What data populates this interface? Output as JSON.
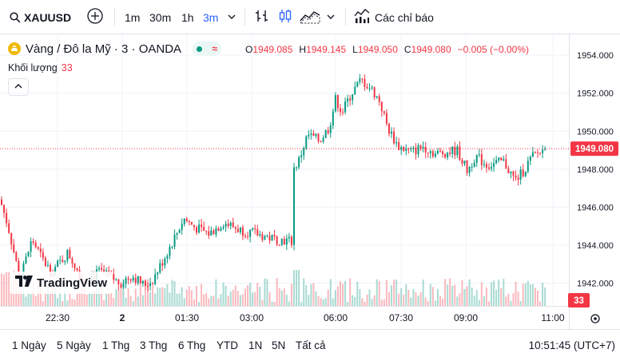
{
  "toolbar": {
    "symbol": "XAUUSD",
    "intervals": [
      "1m",
      "30m",
      "1h",
      "3m"
    ],
    "active_interval": "3m",
    "indicators_label": "Các chỉ báo"
  },
  "legend": {
    "title": "Vàng / Đô la Mỹ · 3 · OANDA",
    "ohlc": [
      {
        "key": "O",
        "value": "1949.085"
      },
      {
        "key": "H",
        "value": "1949.145"
      },
      {
        "key": "L",
        "value": "1949.050"
      },
      {
        "key": "C",
        "value": "1949.080"
      }
    ],
    "change": "−0.005 (−0.00%)",
    "volume_label": "Khối lượng",
    "volume_value": "33"
  },
  "bottom": {
    "ranges": [
      "1 Ngày",
      "5 Ngày",
      "1 Thg",
      "3 Thg",
      "6 Thg",
      "YTD",
      "1N",
      "5N",
      "Tất cả"
    ],
    "clock": "10:51:45 (UTC+7)"
  },
  "logo_text": "TradingView",
  "colors": {
    "up": "#089981",
    "down": "#f23645",
    "accent": "#2962ff"
  },
  "chart_data": {
    "type": "candlestick",
    "symbol": "XAUUSD",
    "last_price": "1949.080",
    "last_volume": "33",
    "price_axis": {
      "ticks": [
        "1954.000",
        "1952.000",
        "1950.000",
        "1948.000",
        "1946.000",
        "1944.000",
        "1942.000"
      ],
      "range": [
        1940.8,
        1955.1
      ]
    },
    "time_axis": {
      "ticks": [
        "22:30",
        "2",
        "01:30",
        "03:00",
        "06:00",
        "07:30",
        "09:00",
        "11:00"
      ]
    },
    "close_path": [
      [
        0,
        1946.4
      ],
      [
        10,
        1945.0
      ],
      [
        25,
        1942.2
      ],
      [
        40,
        1944.3
      ],
      [
        55,
        1943.1
      ],
      [
        65,
        1942.6
      ],
      [
        85,
        1943.6
      ],
      [
        105,
        1942.1
      ],
      [
        125,
        1942.6
      ],
      [
        150,
        1942.0
      ],
      [
        165,
        1942.4
      ],
      [
        180,
        1941.9
      ],
      [
        190,
        1942.1
      ],
      [
        203,
        1943.1
      ],
      [
        215,
        1944.1
      ],
      [
        230,
        1945.4
      ],
      [
        245,
        1944.9
      ],
      [
        262,
        1944.6
      ],
      [
        280,
        1945.2
      ],
      [
        300,
        1944.8
      ],
      [
        320,
        1944.6
      ],
      [
        345,
        1944.3
      ],
      [
        369,
        1944.2
      ],
      [
        372,
        1948.2
      ],
      [
        385,
        1949.8
      ],
      [
        400,
        1949.5
      ],
      [
        412,
        1950.2
      ],
      [
        420,
        1951.7
      ],
      [
        428,
        1951.0
      ],
      [
        440,
        1952.0
      ],
      [
        452,
        1952.7
      ],
      [
        465,
        1952.2
      ],
      [
        475,
        1951.6
      ],
      [
        485,
        1950.2
      ],
      [
        498,
        1949.2
      ],
      [
        515,
        1948.9
      ],
      [
        530,
        1949.2
      ],
      [
        545,
        1948.8
      ],
      [
        560,
        1948.9
      ],
      [
        572,
        1949.0
      ],
      [
        585,
        1947.9
      ],
      [
        595,
        1948.7
      ],
      [
        610,
        1948.2
      ],
      [
        630,
        1948.4
      ],
      [
        645,
        1947.4
      ],
      [
        655,
        1947.9
      ],
      [
        665,
        1948.6
      ],
      [
        675,
        1948.9
      ],
      [
        685,
        1949.08
      ]
    ]
  }
}
